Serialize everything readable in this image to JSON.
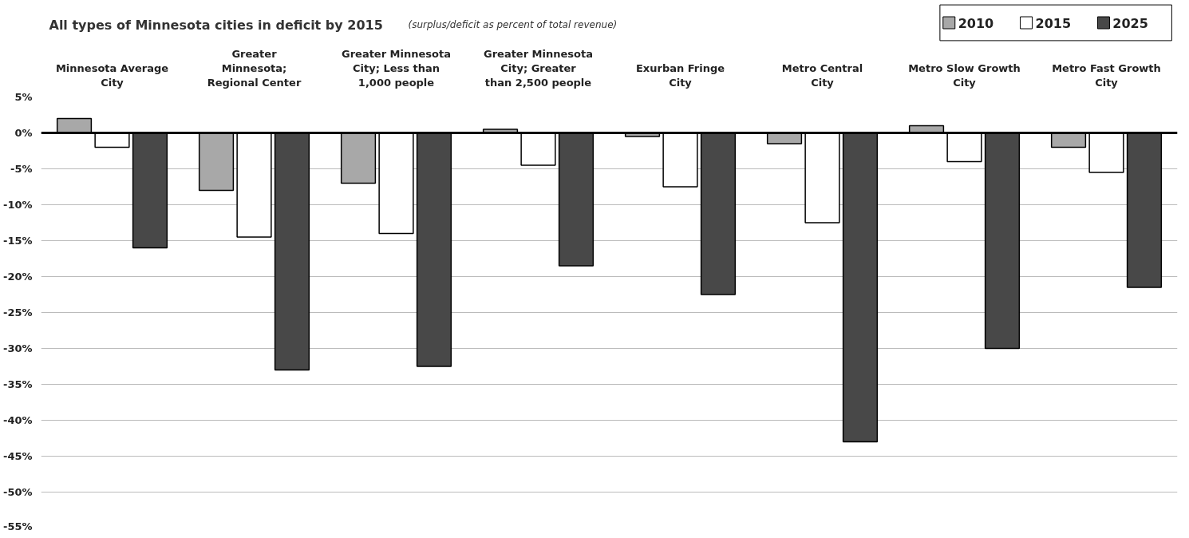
{
  "chart_data": {
    "type": "bar",
    "title": "All types of Minnesota cities in deficit by 2015",
    "subtitle": "(surplus/deficit as percent of total revenue)",
    "categories": [
      "Minnesota Average City",
      "Greater Minnesota; Regional Center",
      "Greater Minnesota City; Less than 1,000 people",
      "Greater Minnesota City; Greater than 2,500 people",
      "Exurban Fringe City",
      "Metro Central City",
      "Metro Slow Growth City",
      "Metro Fast Growth City"
    ],
    "series": [
      {
        "name": "2010",
        "color": "#a8a8a8",
        "values": [
          2,
          -8,
          -7,
          0.5,
          -0.5,
          -1.5,
          1,
          -2
        ]
      },
      {
        "name": "2015",
        "color": "#ffffff",
        "values": [
          -2,
          -14.5,
          -14,
          -4.5,
          -7.5,
          -12.5,
          -4,
          -5.5
        ]
      },
      {
        "name": "2025",
        "color": "#484848",
        "values": [
          -16,
          -33,
          -32.5,
          -18.5,
          -22.5,
          -43,
          -30,
          -21.5
        ]
      }
    ],
    "ylim": [
      -55,
      5
    ],
    "yticks": [
      {
        "value": 5,
        "label": "5%"
      },
      {
        "value": 0,
        "label": "0%"
      },
      {
        "value": -5,
        "label": "-5%"
      },
      {
        "value": -10,
        "label": "-10%"
      },
      {
        "value": -15,
        "label": "-15%"
      },
      {
        "value": -20,
        "label": "-20%"
      },
      {
        "value": -25,
        "label": "-25%"
      },
      {
        "value": -30,
        "label": "-30%"
      },
      {
        "value": -35,
        "label": "-35%"
      },
      {
        "value": -40,
        "label": "-40%"
      },
      {
        "value": -45,
        "label": "-45%"
      },
      {
        "value": -50,
        "label": "-50%"
      },
      {
        "value": -55,
        "label": "-55%"
      }
    ],
    "ref_lines": [
      {
        "axis": "y",
        "value": 0,
        "color": "#000000"
      }
    ],
    "grid": "y",
    "legend": "top right"
  }
}
